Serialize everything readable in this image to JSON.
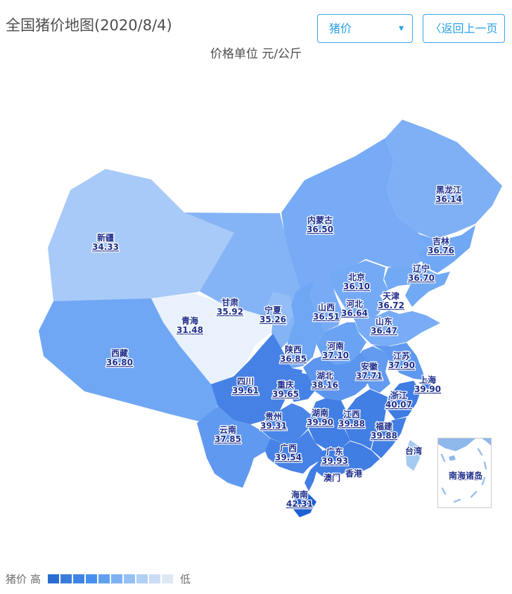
{
  "header": {
    "title": "全国猪价地图(2020/8/4)"
  },
  "controls": {
    "metric_select": {
      "value": "猪价",
      "caret": "▼"
    },
    "back_button": {
      "icon": "〈",
      "label": "返回上一页"
    }
  },
  "subtitle": "价格单位 元/公斤",
  "map": {
    "scale": {
      "min": 31.48,
      "max": 42.31,
      "light": "#e9f1fc",
      "mid": "#6ea6f5",
      "dark": "#1e5fd6"
    },
    "no_data_color": "#9ec6f3",
    "inset": {
      "label": "南海诸岛"
    },
    "provinces": [
      {
        "id": "heilongjiang",
        "name": "黑龙江",
        "value": "36.14"
      },
      {
        "id": "neimenggu",
        "name": "内蒙古",
        "value": "36.50"
      },
      {
        "id": "jilin",
        "name": "吉林",
        "value": "36.76"
      },
      {
        "id": "liaoning",
        "name": "辽宁",
        "value": "36.70"
      },
      {
        "id": "beijing",
        "name": "北京",
        "value": "36.10"
      },
      {
        "id": "tianjin",
        "name": "天津",
        "value": "36.72"
      },
      {
        "id": "hebei",
        "name": "河北",
        "value": "36.64"
      },
      {
        "id": "shanxi",
        "name": "山西",
        "value": "36.51"
      },
      {
        "id": "shandong",
        "name": "山东",
        "value": "36.47"
      },
      {
        "id": "xinjiang",
        "name": "新疆",
        "value": "34.33"
      },
      {
        "id": "gansu",
        "name": "甘肃",
        "value": "35.92"
      },
      {
        "id": "ningxia",
        "name": "宁夏",
        "value": "35.26"
      },
      {
        "id": "qinghai",
        "name": "青海",
        "value": "31.48"
      },
      {
        "id": "shaanxi",
        "name": "陕西",
        "value": "36.85"
      },
      {
        "id": "henan",
        "name": "河南",
        "value": "37.10"
      },
      {
        "id": "jiangsu",
        "name": "江苏",
        "value": "37.90"
      },
      {
        "id": "anhui",
        "name": "安徽",
        "value": "37.71"
      },
      {
        "id": "shanghai",
        "name": "上海",
        "value": "39.90"
      },
      {
        "id": "xizang",
        "name": "西藏",
        "value": "36.80"
      },
      {
        "id": "sichuan",
        "name": "四川",
        "value": "39.61"
      },
      {
        "id": "chongqing",
        "name": "重庆",
        "value": "39.65"
      },
      {
        "id": "hubei",
        "name": "湖北",
        "value": "38.16"
      },
      {
        "id": "zhejiang",
        "name": "浙江",
        "value": "40.07"
      },
      {
        "id": "guizhou",
        "name": "贵州",
        "value": "39.31"
      },
      {
        "id": "hunan",
        "name": "湖南",
        "value": "39.90"
      },
      {
        "id": "jiangxi",
        "name": "江西",
        "value": "39.88"
      },
      {
        "id": "fujian",
        "name": "福建",
        "value": "39.88"
      },
      {
        "id": "yunnan",
        "name": "云南",
        "value": "37.85"
      },
      {
        "id": "guangxi",
        "name": "广西",
        "value": "39.54"
      },
      {
        "id": "guangdong",
        "name": "广东",
        "value": "39.93"
      },
      {
        "id": "hainan",
        "name": "海南",
        "value": "42.31"
      },
      {
        "id": "taiwan",
        "name": "台湾",
        "value": null,
        "color": "#a5caf1"
      },
      {
        "id": "xianggang",
        "name": "香港",
        "value": null,
        "color": "#4585e8"
      },
      {
        "id": "aomen",
        "name": "澳门",
        "value": null,
        "color": "#4585e8"
      }
    ]
  },
  "legend": {
    "title": "猪价",
    "high": "高",
    "low": "低",
    "colors": [
      "#2a6dd1",
      "#3a7cdb",
      "#3f84e4",
      "#4890ef",
      "#61a0f1",
      "#7db1f4",
      "#95c0f5",
      "#b1d0f6",
      "#cbdcf6",
      "#dee8f5"
    ]
  }
}
